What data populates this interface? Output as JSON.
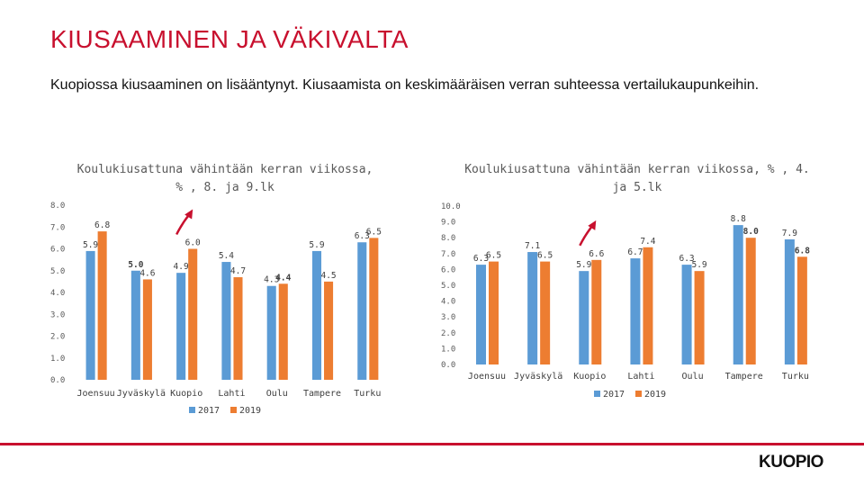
{
  "page": {
    "title": "KIUSAAMINEN JA VÄKIVALTA",
    "subtitle": "Kuopiossa kiusaaminen on lisääntynyt. Kiusaamista on keskimääräisen verran suhteessa vertailukaupunkeihin.",
    "logo": "KUOPIO"
  },
  "colors": {
    "s2017": "#5b9bd5",
    "s2019": "#ed7d31",
    "accent": "#c8102e",
    "highlight_red": "#c00000",
    "highlight_green": "#00a651",
    "arrow": "#c8102e"
  },
  "chart_data": [
    {
      "type": "bar",
      "title": "Koulukiusattuna vähintään kerran viikossa, %, 8. ja 9.lk",
      "title_lines": [
        "Koulukiusattuna vähintään kerran viikossa,",
        "% , 8. ja 9.lk"
      ],
      "categories": [
        "Joensuu",
        "Jyväskylä",
        "Kuopio",
        "Lahti",
        "Oulu",
        "Tampere",
        "Turku"
      ],
      "series": [
        {
          "name": "2017",
          "values": [
            5.9,
            5.0,
            4.9,
            5.4,
            4.3,
            5.9,
            6.3
          ]
        },
        {
          "name": "2019",
          "values": [
            6.8,
            4.6,
            6.0,
            4.7,
            4.4,
            4.5,
            6.5
          ]
        }
      ],
      "label_colors": {
        "0.1": "#c00000",
        "1.4": "#00a651"
      },
      "ylim": [
        0,
        8
      ],
      "yticks": [
        "0.0",
        "1.0",
        "2.0",
        "3.0",
        "4.0",
        "5.0",
        "6.0",
        "7.0",
        "8.0"
      ],
      "legend": {
        "position": "bottom",
        "entries": [
          "2017",
          "2019"
        ]
      },
      "annotation": "red arrow pointing up at Kuopio"
    },
    {
      "type": "bar",
      "title": "Koulukiusattuna vähintään kerran viikossa, %, 4. ja 5.lk",
      "title_lines": [
        "Koulukiusattuna vähintään kerran viikossa, % , 4.",
        "ja 5.lk"
      ],
      "categories": [
        "Joensuu",
        "Jyväskylä",
        "Kuopio",
        "Lahti",
        "Oulu",
        "Tampere",
        "Turku"
      ],
      "series": [
        {
          "name": "2017",
          "values": [
            6.3,
            7.1,
            5.9,
            6.7,
            6.3,
            8.8,
            7.9
          ]
        },
        {
          "name": "2019",
          "values": [
            6.5,
            6.5,
            6.6,
            7.4,
            5.9,
            8.0,
            6.8
          ]
        }
      ],
      "label_colors": {
        "1.5": "#00a651",
        "1.6": "#c00000"
      },
      "ylim": [
        0,
        10
      ],
      "yticks": [
        "0.0",
        "1.0",
        "2.0",
        "3.0",
        "4.0",
        "5.0",
        "6.0",
        "7.0",
        "8.0",
        "9.0",
        "10.0"
      ],
      "legend": {
        "position": "bottom",
        "entries": [
          "2017",
          "2019"
        ]
      },
      "annotation": "red arrow pointing up at Kuopio"
    }
  ]
}
